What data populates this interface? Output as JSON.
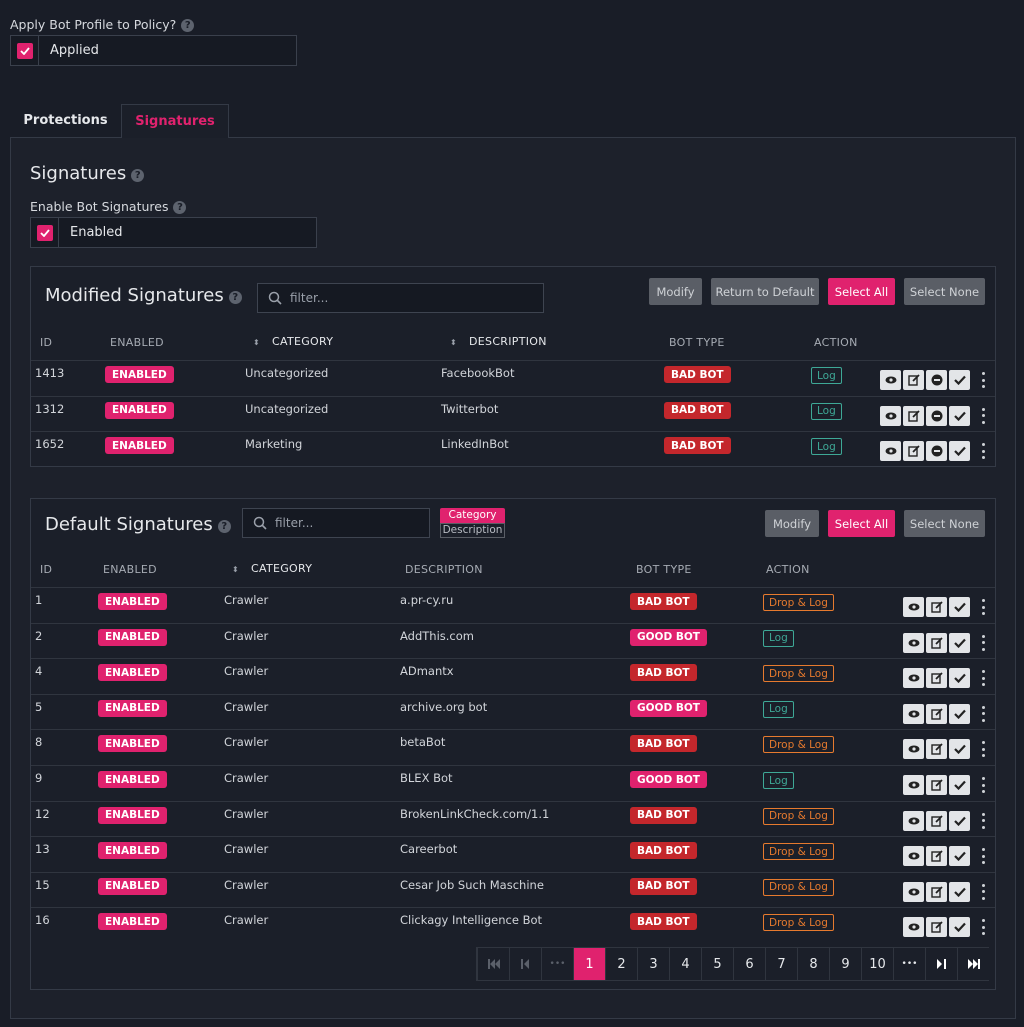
{
  "apply": {
    "label": "Apply Bot Profile to Policy?",
    "help": "?",
    "value": "Applied"
  },
  "tabs": [
    {
      "label": "Protections",
      "active": false
    },
    {
      "label": "Signatures",
      "active": true
    }
  ],
  "signatures": {
    "title": "Signatures",
    "help": "?",
    "enable_label": "Enable Bot Signatures",
    "enable_help": "?",
    "enable_value": "Enabled"
  },
  "modified": {
    "title": "Modified Signatures",
    "help": "?",
    "filter_placeholder": "filter...",
    "buttons": {
      "modify": "Modify",
      "return_default": "Return to Default",
      "select_all": "Select All",
      "select_none": "Select None"
    },
    "columns": [
      "ID",
      "ENABLED",
      "CATEGORY",
      "DESCRIPTION",
      "BOT TYPE",
      "ACTION"
    ],
    "rows": [
      {
        "id": "1413",
        "enabled": "ENABLED",
        "category": "Uncategorized",
        "description": "FacebookBot",
        "bot_type": "BAD BOT",
        "action": "Log"
      },
      {
        "id": "1312",
        "enabled": "ENABLED",
        "category": "Uncategorized",
        "description": "Twitterbot",
        "bot_type": "BAD BOT",
        "action": "Log"
      },
      {
        "id": "1652",
        "enabled": "ENABLED",
        "category": "Marketing",
        "description": "LinkedInBot",
        "bot_type": "BAD BOT",
        "action": "Log"
      }
    ]
  },
  "default": {
    "title": "Default Signatures",
    "help": "?",
    "filter_placeholder": "filter...",
    "filter_options": [
      "Category",
      "Description"
    ],
    "buttons": {
      "modify": "Modify",
      "select_all": "Select All",
      "select_none": "Select None"
    },
    "columns": [
      "ID",
      "ENABLED",
      "CATEGORY",
      "DESCRIPTION",
      "BOT TYPE",
      "ACTION"
    ],
    "rows": [
      {
        "id": "1",
        "enabled": "ENABLED",
        "category": "Crawler",
        "description": "a.pr-cy.ru",
        "bot_type": "BAD BOT",
        "action": "Drop & Log"
      },
      {
        "id": "2",
        "enabled": "ENABLED",
        "category": "Crawler",
        "description": "AddThis.com",
        "bot_type": "GOOD BOT",
        "action": "Log"
      },
      {
        "id": "4",
        "enabled": "ENABLED",
        "category": "Crawler",
        "description": "ADmantx",
        "bot_type": "BAD BOT",
        "action": "Drop & Log"
      },
      {
        "id": "5",
        "enabled": "ENABLED",
        "category": "Crawler",
        "description": "archive.org bot",
        "bot_type": "GOOD BOT",
        "action": "Log"
      },
      {
        "id": "8",
        "enabled": "ENABLED",
        "category": "Crawler",
        "description": "betaBot",
        "bot_type": "BAD BOT",
        "action": "Drop & Log"
      },
      {
        "id": "9",
        "enabled": "ENABLED",
        "category": "Crawler",
        "description": "BLEX Bot",
        "bot_type": "GOOD BOT",
        "action": "Log"
      },
      {
        "id": "12",
        "enabled": "ENABLED",
        "category": "Crawler",
        "description": "BrokenLinkCheck.com/1.1",
        "bot_type": "BAD BOT",
        "action": "Drop & Log"
      },
      {
        "id": "13",
        "enabled": "ENABLED",
        "category": "Crawler",
        "description": "Careerbot",
        "bot_type": "BAD BOT",
        "action": "Drop & Log"
      },
      {
        "id": "15",
        "enabled": "ENABLED",
        "category": "Crawler",
        "description": "Cesar Job Such Maschine",
        "bot_type": "BAD BOT",
        "action": "Drop & Log"
      },
      {
        "id": "16",
        "enabled": "ENABLED",
        "category": "Crawler",
        "description": "Clickagy Intelligence Bot",
        "bot_type": "BAD BOT",
        "action": "Drop & Log"
      }
    ]
  },
  "pagination": {
    "ellipsis": "•••",
    "pages": [
      "1",
      "2",
      "3",
      "4",
      "5",
      "6",
      "7",
      "8",
      "9",
      "10"
    ],
    "current": "1"
  },
  "colors": {
    "accent": "#e0226e",
    "bad_bot": "#c4272c",
    "log": "#3ea896",
    "drop_log": "#e67a2e",
    "background": "#191d27"
  }
}
